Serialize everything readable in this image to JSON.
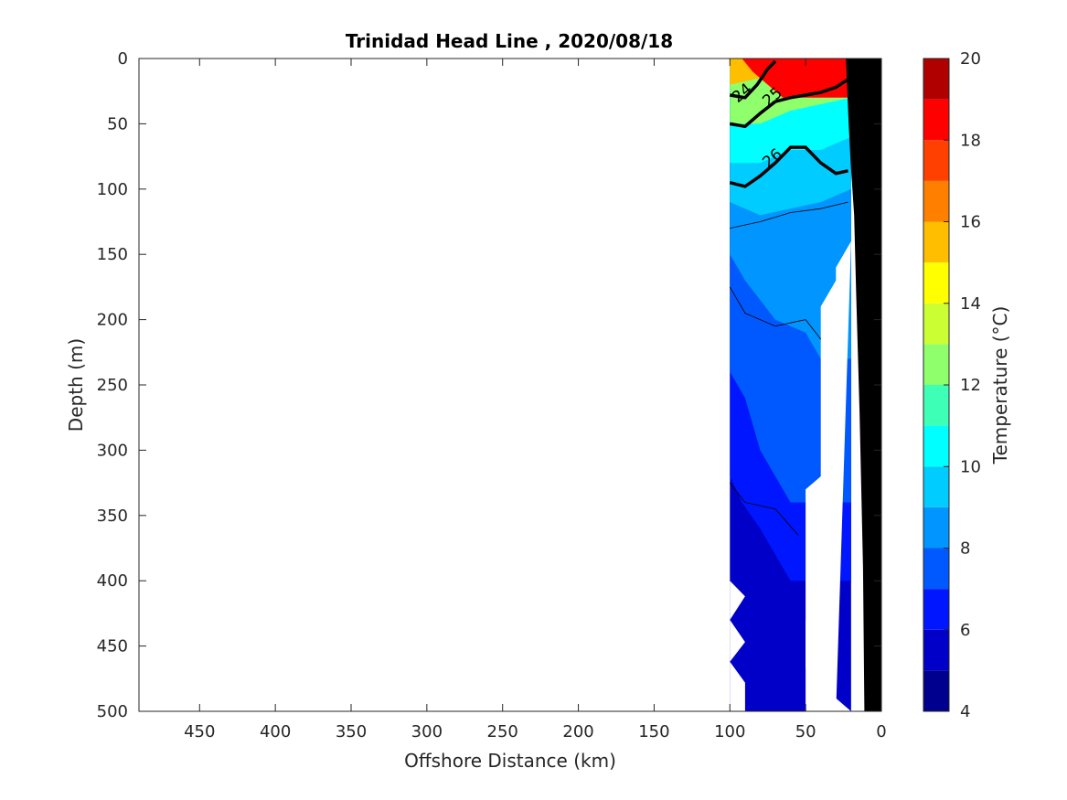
{
  "chart_data": {
    "type": "heatmap",
    "title": "Trinidad Head Line , 2020/08/18",
    "xlabel": "Offshore Distance (km)",
    "ylabel": "Depth (m)",
    "colorbar_label": "Temperature (°C)",
    "xlim": [
      490,
      0
    ],
    "ylim": [
      0,
      500
    ],
    "x_reversed": true,
    "y_reversed": true,
    "x_ticks": [
      450,
      400,
      350,
      300,
      250,
      200,
      150,
      100,
      50,
      0
    ],
    "y_ticks": [
      0,
      50,
      100,
      150,
      200,
      250,
      300,
      350,
      400,
      450,
      500
    ],
    "colorbar_ticks": [
      4,
      6,
      8,
      10,
      12,
      14,
      16,
      18,
      20
    ],
    "colorbar_range": [
      4,
      20
    ],
    "colorbar_levels": [
      {
        "min": 4,
        "max": 5,
        "color": "#00008f"
      },
      {
        "min": 5,
        "max": 6,
        "color": "#0000c8"
      },
      {
        "min": 6,
        "max": 7,
        "color": "#0016ff"
      },
      {
        "min": 7,
        "max": 8,
        "color": "#0059ff"
      },
      {
        "min": 8,
        "max": 9,
        "color": "#0095ff"
      },
      {
        "min": 9,
        "max": 10,
        "color": "#00ccff"
      },
      {
        "min": 10,
        "max": 11,
        "color": "#00ffff"
      },
      {
        "min": 11,
        "max": 12,
        "color": "#3dffb5"
      },
      {
        "min": 12,
        "max": 13,
        "color": "#8fff6b"
      },
      {
        "min": 13,
        "max": 14,
        "color": "#ccff33"
      },
      {
        "min": 14,
        "max": 15,
        "color": "#ffff00"
      },
      {
        "min": 15,
        "max": 16,
        "color": "#ffbf00"
      },
      {
        "min": 16,
        "max": 17,
        "color": "#ff7f00"
      },
      {
        "min": 17,
        "max": 18,
        "color": "#ff4000"
      },
      {
        "min": 18,
        "max": 19,
        "color": "#ff0000"
      },
      {
        "min": 19,
        "max": 20,
        "color": "#b00000"
      }
    ],
    "temperature_bands": [
      {
        "temp": 5.5,
        "left": [
          [
            100,
            400
          ],
          [
            90,
            412
          ],
          [
            100,
            430
          ],
          [
            90,
            447
          ],
          [
            100,
            462
          ],
          [
            90,
            478
          ],
          [
            90,
            500
          ]
        ],
        "right": [
          [
            50,
            500
          ],
          [
            40,
            485
          ],
          [
            50,
            467
          ],
          [
            50,
            500
          ]
        ]
      },
      {
        "temp": 6.5,
        "left": [
          [
            100,
            320
          ],
          [
            92,
            340
          ],
          [
            80,
            360
          ],
          [
            70,
            380
          ],
          [
            60,
            400
          ]
        ],
        "right": [
          [
            50,
            390
          ],
          [
            50,
            430
          ],
          [
            40,
            450
          ],
          [
            50,
            470
          ]
        ]
      },
      {
        "temp": 7.5,
        "left": [
          [
            100,
            240
          ],
          [
            90,
            260
          ],
          [
            80,
            300
          ],
          [
            70,
            320
          ],
          [
            60,
            340
          ]
        ],
        "right": [
          [
            40,
            320
          ],
          [
            50,
            330
          ],
          [
            50,
            390
          ]
        ]
      },
      {
        "temp": 8.5,
        "left": [
          [
            100,
            150
          ],
          [
            90,
            170
          ],
          [
            70,
            200
          ],
          [
            50,
            210
          ],
          [
            40,
            230
          ]
        ],
        "right": [
          [
            20,
            140
          ],
          [
            30,
            160
          ],
          [
            30,
            170
          ],
          [
            40,
            190
          ],
          [
            40,
            320
          ]
        ]
      },
      {
        "temp": 9.5,
        "left": [
          [
            100,
            110
          ],
          [
            80,
            120
          ],
          [
            60,
            115
          ],
          [
            40,
            110
          ],
          [
            20,
            100
          ]
        ],
        "right": [
          [
            20,
            70
          ],
          [
            20,
            140
          ]
        ]
      },
      {
        "temp": 10.5,
        "left": [
          [
            100,
            80
          ],
          [
            80,
            80
          ],
          [
            60,
            70
          ],
          [
            40,
            70
          ],
          [
            20,
            60
          ]
        ],
        "right": [
          [
            20,
            50
          ],
          [
            20,
            70
          ]
        ]
      },
      {
        "temp": 12.5,
        "left": [
          [
            100,
            50
          ],
          [
            80,
            50
          ],
          [
            60,
            40
          ],
          [
            40,
            35
          ],
          [
            20,
            30
          ]
        ],
        "right": [
          [
            20,
            25
          ],
          [
            20,
            50
          ]
        ]
      },
      {
        "temp": 15.5,
        "left": [
          [
            100,
            20
          ],
          [
            80,
            15
          ],
          [
            60,
            10
          ],
          [
            40,
            5
          ],
          [
            20,
            5
          ]
        ],
        "right": [
          [
            20,
            0
          ],
          [
            20,
            25
          ]
        ]
      },
      {
        "temp": 18.5,
        "left": [
          [
            100,
            0
          ],
          [
            92,
            0
          ],
          [
            85,
            10
          ],
          [
            75,
            20
          ],
          [
            65,
            30
          ]
        ],
        "right": [
          [
            60,
            0
          ],
          [
            60,
            10
          ],
          [
            70,
            15
          ]
        ]
      }
    ],
    "density_contours": [
      {
        "level": 24,
        "label": "24",
        "points": [
          [
            100,
            28
          ],
          [
            90,
            30
          ],
          [
            82,
            20
          ],
          [
            75,
            8
          ],
          [
            70,
            2
          ]
        ]
      },
      {
        "level": 25,
        "label": "25",
        "points": [
          [
            100,
            50
          ],
          [
            90,
            52
          ],
          [
            80,
            42
          ],
          [
            70,
            33
          ],
          [
            60,
            30
          ],
          [
            50,
            28
          ],
          [
            40,
            26
          ],
          [
            30,
            22
          ],
          [
            22,
            16
          ]
        ]
      },
      {
        "level": 26,
        "label": "26",
        "points": [
          [
            100,
            95
          ],
          [
            90,
            98
          ],
          [
            80,
            90
          ],
          [
            70,
            80
          ],
          [
            60,
            68
          ],
          [
            50,
            68
          ],
          [
            40,
            80
          ],
          [
            30,
            88
          ],
          [
            22,
            86
          ]
        ]
      }
    ],
    "data_extent": {
      "x": [
        20,
        100
      ],
      "depth": [
        0,
        500
      ]
    },
    "seafloor_color": "#000000"
  }
}
